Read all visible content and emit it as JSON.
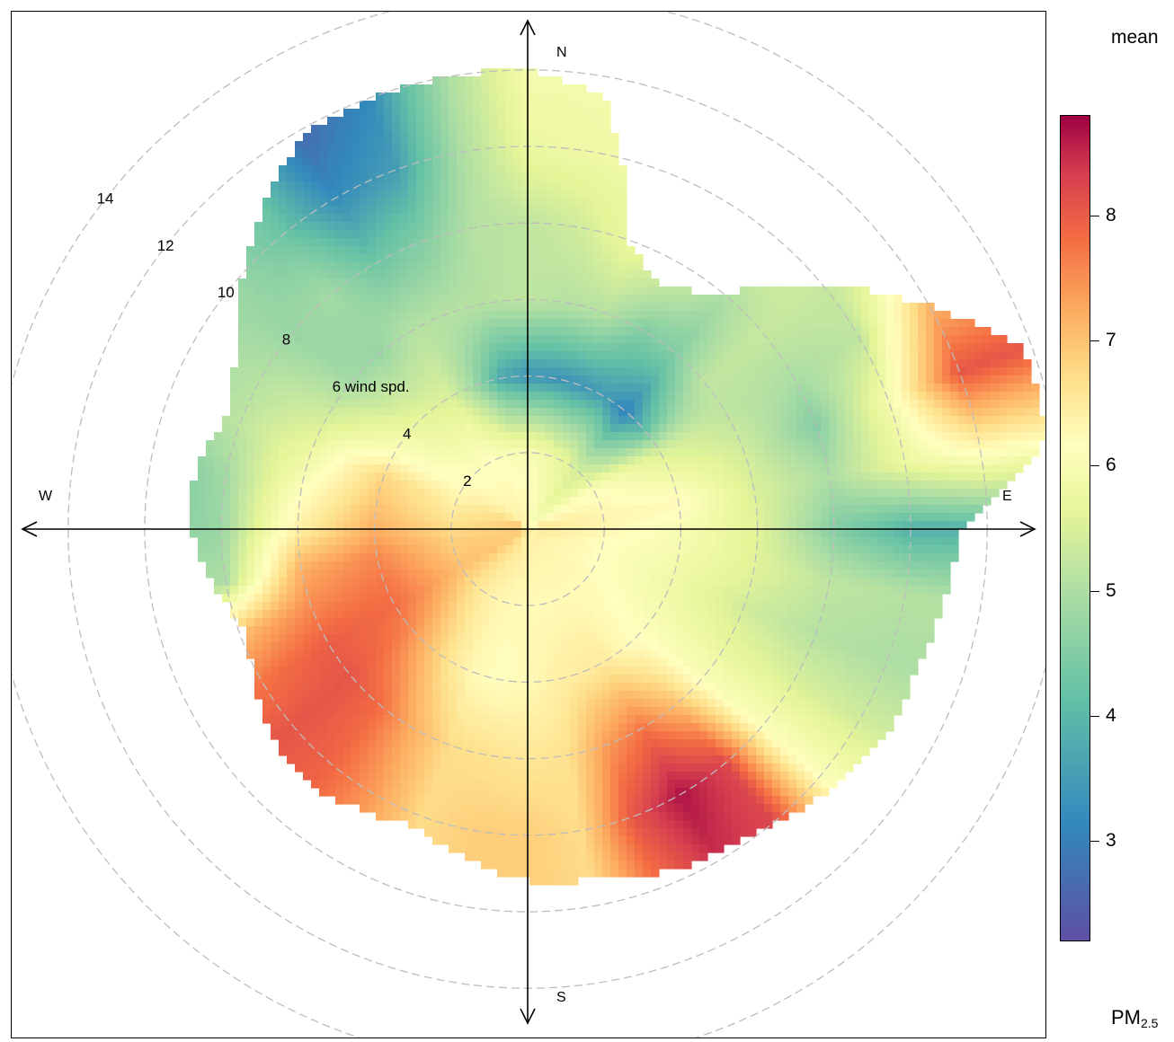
{
  "chart_data": {
    "type": "heatmap",
    "subtype": "polar plot",
    "statistic": "mean",
    "pollutant_label": {
      "base": "PM",
      "subscript": "2.5"
    },
    "radial_axis": {
      "ring_values": [
        2,
        4,
        6,
        8,
        10,
        12,
        14
      ],
      "ring_labels": [
        "2",
        "4",
        "6 wind spd.",
        "8",
        "10",
        "12",
        "14"
      ],
      "max": 14
    },
    "directions": [
      "N",
      "E",
      "S",
      "W"
    ],
    "colorbar": {
      "ticks": [
        3,
        4,
        5,
        6,
        7,
        8
      ],
      "range": [
        2.2,
        8.8
      ],
      "palette": [
        "#5e4fa2",
        "#3288bd",
        "#66c2a5",
        "#abdda4",
        "#e6f598",
        "#ffffbf",
        "#fee08b",
        "#fdae61",
        "#f46d43",
        "#d53e4f",
        "#9e0142"
      ]
    },
    "sectors": [
      {
        "direction_deg": 0,
        "max_speed": 12.0,
        "mean_by_speed": [
          5.8,
          5.3,
          3.0,
          4.4,
          4.4,
          5.0,
          5.2
        ]
      },
      {
        "direction_deg": 10,
        "max_speed": 11.5,
        "mean_by_speed": [
          5.6,
          5.2,
          3.0,
          4.3,
          4.6,
          5.1,
          5.2
        ]
      },
      {
        "direction_deg": 20,
        "max_speed": 7.8,
        "mean_by_speed": [
          5.4,
          5.0,
          3.0,
          4.3,
          5.0,
          5.1,
          5.1
        ]
      },
      {
        "direction_deg": 30,
        "max_speed": 7.2,
        "mean_by_speed": [
          5.3,
          4.9,
          3.1,
          3.8,
          4.8,
          5.1,
          5.0
        ]
      },
      {
        "direction_deg": 40,
        "max_speed": 8.0,
        "mean_by_speed": [
          5.2,
          4.6,
          2.8,
          3.8,
          4.2,
          4.9,
          4.9
        ]
      },
      {
        "direction_deg": 50,
        "max_speed": 10.0,
        "mean_by_speed": [
          5.4,
          4.8,
          3.5,
          4.4,
          4.5,
          4.5,
          4.6
        ]
      },
      {
        "direction_deg": 60,
        "max_speed": 11.8,
        "mean_by_speed": [
          5.6,
          5.4,
          4.7,
          4.4,
          4.2,
          4.4,
          6.6
        ]
      },
      {
        "direction_deg": 70,
        "max_speed": 13.8,
        "mean_by_speed": [
          5.8,
          5.6,
          5.1,
          4.6,
          3.8,
          5.2,
          7.8
        ]
      },
      {
        "direction_deg": 80,
        "max_speed": 13.8,
        "mean_by_speed": [
          6.0,
          5.7,
          5.6,
          4.7,
          4.2,
          5.0,
          5.6
        ]
      },
      {
        "direction_deg": 90,
        "max_speed": 11.3,
        "mean_by_speed": [
          6.1,
          5.7,
          5.3,
          4.8,
          3.8,
          3.3,
          3.3
        ]
      },
      {
        "direction_deg": 100,
        "max_speed": 11.0,
        "mean_by_speed": [
          6.0,
          5.5,
          5.2,
          4.8,
          4.4,
          4.3,
          4.3
        ]
      },
      {
        "direction_deg": 110,
        "max_speed": 10.8,
        "mean_by_speed": [
          5.9,
          5.5,
          5.1,
          4.6,
          4.3,
          4.2,
          4.2
        ]
      },
      {
        "direction_deg": 120,
        "max_speed": 10.8,
        "mean_by_speed": [
          5.8,
          5.5,
          5.2,
          4.9,
          4.7,
          4.6,
          4.6
        ]
      },
      {
        "direction_deg": 130,
        "max_speed": 10.5,
        "mean_by_speed": [
          5.8,
          5.6,
          5.4,
          5.3,
          5.4,
          5.4,
          5.4
        ]
      },
      {
        "direction_deg": 140,
        "max_speed": 10.0,
        "mean_by_speed": [
          5.8,
          5.6,
          5.6,
          6.6,
          8.0,
          8.0,
          8.0
        ]
      },
      {
        "direction_deg": 150,
        "max_speed": 9.8,
        "mean_by_speed": [
          5.8,
          5.6,
          5.9,
          7.4,
          8.6,
          8.3,
          8.3
        ]
      },
      {
        "direction_deg": 160,
        "max_speed": 9.6,
        "mean_by_speed": [
          5.8,
          5.6,
          5.9,
          7.0,
          7.8,
          7.4,
          7.4
        ]
      },
      {
        "direction_deg": 170,
        "max_speed": 9.3,
        "mean_by_speed": [
          5.8,
          5.6,
          5.8,
          6.1,
          6.2,
          6.2,
          6.2
        ]
      },
      {
        "direction_deg": 180,
        "max_speed": 9.2,
        "mean_by_speed": [
          5.9,
          5.6,
          5.6,
          6.0,
          6.4,
          6.4,
          6.4
        ]
      },
      {
        "direction_deg": 190,
        "max_speed": 8.8,
        "mean_by_speed": [
          5.9,
          5.6,
          5.5,
          6.1,
          6.4,
          6.4,
          6.4
        ]
      },
      {
        "direction_deg": 200,
        "max_speed": 8.3,
        "mean_by_speed": [
          6.0,
          5.7,
          5.6,
          6.2,
          6.2,
          6.2,
          6.2
        ]
      },
      {
        "direction_deg": 210,
        "max_speed": 8.5,
        "mean_by_speed": [
          6.1,
          5.8,
          6.0,
          6.8,
          7.0,
          7.0,
          7.0
        ]
      },
      {
        "direction_deg": 220,
        "max_speed": 8.8,
        "mean_by_speed": [
          6.2,
          6.0,
          6.6,
          7.5,
          7.6,
          7.6,
          7.6
        ]
      },
      {
        "direction_deg": 230,
        "max_speed": 8.6,
        "mean_by_speed": [
          6.3,
          6.3,
          7.2,
          7.8,
          7.8,
          7.8,
          7.8
        ]
      },
      {
        "direction_deg": 240,
        "max_speed": 8.2,
        "mean_by_speed": [
          6.4,
          6.6,
          7.5,
          7.7,
          7.4,
          7.4,
          7.4
        ]
      },
      {
        "direction_deg": 250,
        "max_speed": 7.8,
        "mean_by_speed": [
          6.4,
          6.5,
          7.4,
          7.2,
          6.6,
          6.6,
          6.6
        ]
      },
      {
        "direction_deg": 260,
        "max_speed": 8.3,
        "mean_by_speed": [
          6.4,
          6.4,
          7.2,
          6.8,
          4.2,
          4.2,
          4.2
        ]
      },
      {
        "direction_deg": 270,
        "max_speed": 8.8,
        "mean_by_speed": [
          6.5,
          6.2,
          6.8,
          5.8,
          4.0,
          3.8,
          3.8
        ]
      },
      {
        "direction_deg": 280,
        "max_speed": 8.8,
        "mean_by_speed": [
          6.5,
          6.0,
          6.5,
          5.4,
          4.1,
          3.6,
          3.6
        ]
      },
      {
        "direction_deg": 290,
        "max_speed": 8.4,
        "mean_by_speed": [
          6.5,
          5.8,
          6.3,
          5.0,
          4.4,
          4.0,
          4.0
        ]
      },
      {
        "direction_deg": 300,
        "max_speed": 8.8,
        "mean_by_speed": [
          6.3,
          5.6,
          5.4,
          4.6,
          4.3,
          4.1,
          4.1
        ]
      },
      {
        "direction_deg": 310,
        "max_speed": 9.8,
        "mean_by_speed": [
          6.0,
          5.5,
          5.0,
          4.1,
          4.0,
          4.0,
          4.0
        ]
      },
      {
        "direction_deg": 320,
        "max_speed": 10.8,
        "mean_by_speed": [
          5.9,
          5.4,
          4.8,
          4.0,
          4.1,
          3.6,
          3.6
        ]
      },
      {
        "direction_deg": 330,
        "max_speed": 11.8,
        "mean_by_speed": [
          5.8,
          5.5,
          4.7,
          4.3,
          3.6,
          2.9,
          2.5
        ]
      },
      {
        "direction_deg": 340,
        "max_speed": 12.0,
        "mean_by_speed": [
          5.8,
          5.4,
          4.0,
          4.3,
          3.8,
          3.1,
          2.9
        ]
      },
      {
        "direction_deg": 350,
        "max_speed": 12.0,
        "mean_by_speed": [
          5.8,
          5.3,
          3.2,
          4.3,
          4.3,
          4.2,
          4.2
        ]
      }
    ]
  }
}
